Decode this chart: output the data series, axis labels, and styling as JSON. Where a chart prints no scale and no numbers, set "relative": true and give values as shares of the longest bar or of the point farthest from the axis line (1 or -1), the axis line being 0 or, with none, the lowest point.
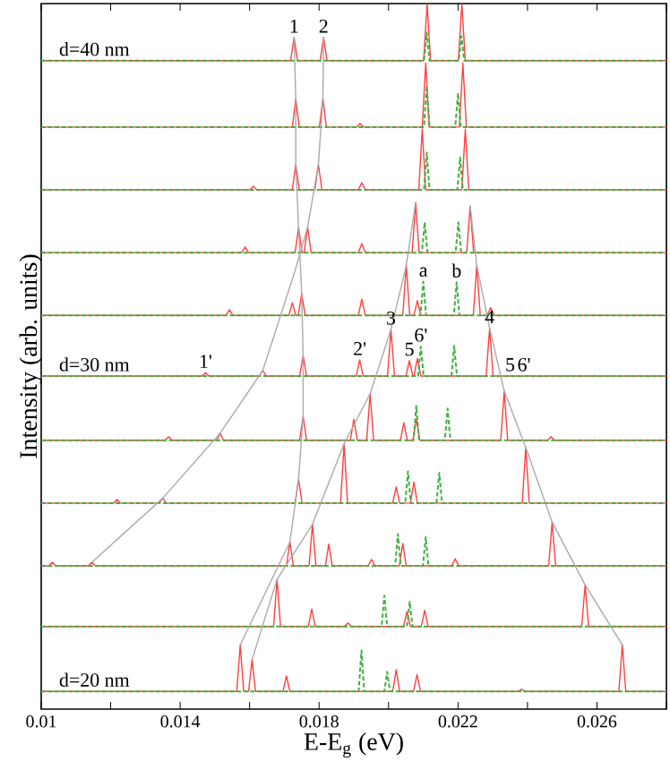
{
  "chart_data": {
    "type": "line",
    "relative": true,
    "xlabel": "E-E$_{g}$ (eV)",
    "ylabel": "Intensity (arb. units)",
    "xlim": [
      0.01,
      0.028
    ],
    "xticks": [
      0.01,
      {
        "value": 0.012,
        "label": null
      },
      0.014,
      {
        "value": 0.016,
        "label": null
      },
      0.018,
      {
        "value": 0.02,
        "label": null
      },
      0.022,
      {
        "value": 0.024,
        "label": null
      },
      0.026,
      {
        "value": 0.028,
        "label": null
      }
    ],
    "series": [
      {
        "color": "#ff4040",
        "x": [
          0.01,
          0.01718,
          0.01728,
          0.01738,
          0.01803,
          0.01813,
          0.01823,
          0.02101,
          0.02111,
          0.02121,
          0.02201,
          0.02211,
          0.02221,
          0.028
        ],
        "values": [
          0.919,
          0.919,
          0.952,
          0.919,
          0.919,
          0.952,
          0.919,
          0.919,
          1,
          0.919,
          0.919,
          1,
          0.919,
          0.919
        ]
      },
      {
        "color": "#ff4040",
        "x": [
          0.01,
          0.01723,
          0.01733,
          0.01743,
          0.01801,
          0.01811,
          0.01821,
          0.01908,
          0.01918,
          0.01928,
          0.02097,
          0.02107,
          0.02117,
          0.02204,
          0.02214,
          0.02224,
          0.028
        ],
        "values": [
          0.825,
          0.825,
          0.865,
          0.825,
          0.825,
          0.865,
          0.825,
          0.825,
          0.83,
          0.825,
          0.825,
          0.916,
          0.825,
          0.825,
          0.916,
          0.825,
          0.825
        ]
      },
      {
        "color": "#ff4040",
        "x": [
          0.01,
          0.01601,
          0.01611,
          0.01621,
          0.01723,
          0.01733,
          0.01743,
          0.01788,
          0.01798,
          0.01808,
          0.01913,
          0.01923,
          0.01933,
          0.02087,
          0.02097,
          0.02107,
          0.02211,
          0.02221,
          0.02231,
          0.028
        ],
        "values": [
          0.736,
          0.736,
          0.741,
          0.736,
          0.736,
          0.772,
          0.736,
          0.736,
          0.772,
          0.736,
          0.736,
          0.746,
          0.736,
          0.736,
          0.822,
          0.736,
          0.736,
          0.822,
          0.736,
          0.736
        ]
      },
      {
        "color": "#ff4040",
        "x": [
          0.01,
          0.01577,
          0.01587,
          0.01597,
          0.01731,
          0.01741,
          0.01751,
          0.01757,
          0.01767,
          0.01777,
          0.01913,
          0.01923,
          0.01933,
          0.02068,
          0.02078,
          0.02088,
          0.02225,
          0.02235,
          0.02245,
          0.028
        ],
        "values": [
          0.647,
          0.647,
          0.655,
          0.647,
          0.647,
          0.683,
          0.647,
          0.647,
          0.683,
          0.647,
          0.647,
          0.66,
          0.647,
          0.647,
          0.718,
          0.647,
          0.647,
          0.713,
          0.647,
          0.647
        ]
      },
      {
        "color": "#ff4040",
        "x": [
          0.01,
          0.01532,
          0.01542,
          0.01552,
          0.01713,
          0.01723,
          0.01733,
          0.0174,
          0.0175,
          0.0176,
          0.01913,
          0.01923,
          0.01933,
          0.02041,
          0.02051,
          0.02061,
          0.02073,
          0.02083,
          0.02093,
          0.02244,
          0.02254,
          0.02264,
          0.02284,
          0.02294,
          0.02304,
          0.028
        ],
        "values": [
          0.558,
          0.558,
          0.566,
          0.558,
          0.558,
          0.576,
          0.558,
          0.558,
          0.589,
          0.558,
          0.558,
          0.581,
          0.558,
          0.558,
          0.629,
          0.558,
          0.558,
          0.579,
          0.558,
          0.558,
          0.629,
          0.558,
          0.558,
          0.569,
          0.558,
          0.558
        ]
      },
      {
        "color": "#ff4040",
        "x": [
          0.01,
          0.01463,
          0.01473,
          0.01483,
          0.01628,
          0.01638,
          0.01648,
          0.01744,
          0.01754,
          0.01764,
          0.01907,
          0.01917,
          0.01927,
          0.01997,
          0.02007,
          0.02017,
          0.0205,
          0.0206,
          0.0207,
          0.02073,
          0.02083,
          0.02093,
          0.02281,
          0.02291,
          0.02301,
          0.028
        ],
        "values": [
          0.472,
          0.472,
          0.477,
          0.472,
          0.472,
          0.48,
          0.472,
          0.472,
          0.501,
          0.472,
          0.472,
          0.495,
          0.472,
          0.472,
          0.538,
          0.472,
          0.472,
          0.494,
          0.472,
          0.472,
          0.497,
          0.472,
          0.472,
          0.54,
          0.472,
          0.472
        ]
      },
      {
        "color": "#ff4040",
        "x": [
          0.01,
          0.01357,
          0.01367,
          0.01377,
          0.01505,
          0.01515,
          0.01525,
          0.01744,
          0.01754,
          0.01764,
          0.0189,
          0.019,
          0.0191,
          0.01937,
          0.01947,
          0.01957,
          0.02034,
          0.02044,
          0.02054,
          0.0207,
          0.0208,
          0.0209,
          0.02323,
          0.02333,
          0.02343,
          0.02458,
          0.02468,
          0.02478,
          0.028
        ],
        "values": [
          0.381,
          0.381,
          0.386,
          0.381,
          0.381,
          0.391,
          0.381,
          0.381,
          0.415,
          0.381,
          0.381,
          0.411,
          0.381,
          0.381,
          0.447,
          0.381,
          0.381,
          0.406,
          0.381,
          0.381,
          0.411,
          0.381,
          0.381,
          0.451,
          0.381,
          0.381,
          0.386,
          0.381,
          0.381
        ]
      },
      {
        "color": "#ff4040",
        "x": [
          0.01,
          0.01208,
          0.01218,
          0.01228,
          0.0134,
          0.0135,
          0.0136,
          0.01731,
          0.01741,
          0.01751,
          0.01862,
          0.01872,
          0.01882,
          0.02012,
          0.02022,
          0.02032,
          0.02063,
          0.02073,
          0.02083,
          0.02385,
          0.02395,
          0.02405,
          0.028
        ],
        "values": [
          0.292,
          0.292,
          0.297,
          0.292,
          0.292,
          0.299,
          0.292,
          0.292,
          0.326,
          0.292,
          0.292,
          0.376,
          0.292,
          0.292,
          0.315,
          0.292,
          0.292,
          0.322,
          0.292,
          0.292,
          0.371,
          0.292,
          0.292
        ]
      },
      {
        "color": "#ff4040",
        "x": [
          0.01,
          0.01022,
          0.01032,
          0.01042,
          0.01136,
          0.01146,
          0.01156,
          0.01706,
          0.01716,
          0.01726,
          0.01771,
          0.01781,
          0.01791,
          0.01818,
          0.01828,
          0.01838,
          0.01941,
          0.01951,
          0.01961,
          0.02031,
          0.02041,
          0.02051,
          0.02182,
          0.02192,
          0.02202,
          0.02461,
          0.02471,
          0.02481,
          0.028
        ],
        "values": [
          0.203,
          0.203,
          0.208,
          0.203,
          0.203,
          0.208,
          0.203,
          0.203,
          0.237,
          0.203,
          0.203,
          0.262,
          0.203,
          0.203,
          0.234,
          0.203,
          0.203,
          0.212,
          0.203,
          0.203,
          0.235,
          0.203,
          0.203,
          0.213,
          0.203,
          0.203,
          0.265,
          0.203,
          0.203
        ]
      },
      {
        "color": "#ff4040",
        "x": [
          0.01,
          0.01669,
          0.01679,
          0.01689,
          0.01769,
          0.01779,
          0.01789,
          0.01873,
          0.01883,
          0.01893,
          0.02043,
          0.02053,
          0.02063,
          0.02094,
          0.02104,
          0.02114,
          0.02556,
          0.02566,
          0.02576,
          0.028
        ],
        "values": [
          0.117,
          0.117,
          0.184,
          0.117,
          0.117,
          0.142,
          0.117,
          0.117,
          0.122,
          0.117,
          0.117,
          0.138,
          0.117,
          0.117,
          0.14,
          0.117,
          0.117,
          0.176,
          0.117,
          0.117
        ]
      },
      {
        "color": "#ff4040",
        "x": [
          0.01,
          0.01563,
          0.01573,
          0.01583,
          0.01597,
          0.01607,
          0.01617,
          0.01696,
          0.01706,
          0.01716,
          0.02012,
          0.02022,
          0.02032,
          0.02072,
          0.02082,
          0.02092,
          0.02373,
          0.02383,
          0.02393,
          0.02663,
          0.02673,
          0.02683,
          0.028
        ],
        "values": [
          0.025,
          0.025,
          0.091,
          0.025,
          0.025,
          0.07,
          0.025,
          0.025,
          0.047,
          0.025,
          0.025,
          0.056,
          0.025,
          0.025,
          0.049,
          0.025,
          0.025,
          0.028,
          0.025,
          0.025,
          0.091,
          0.025,
          0.025
        ]
      },
      {
        "color": "#40b040",
        "line_style": "dashed",
        "x": [
          0.01,
          0.02102,
          0.0211,
          0.02118,
          0.02202,
          0.0221,
          0.02218,
          0.0279
        ],
        "values": [
          0.919,
          0.919,
          0.959,
          0.919,
          0.919,
          0.954,
          0.919,
          0.919
        ]
      },
      {
        "color": "#40b040",
        "line_style": "dashed",
        "x": [
          0.01,
          0.02102,
          0.0211,
          0.02118,
          0.02192,
          0.022,
          0.02208,
          0.0279
        ],
        "values": [
          0.825,
          0.825,
          0.883,
          0.825,
          0.825,
          0.873,
          0.825,
          0.825
        ]
      },
      {
        "color": "#40b040",
        "line_style": "dashed",
        "x": [
          0.01,
          0.02102,
          0.0211,
          0.02118,
          0.02198,
          0.02206,
          0.02214,
          0.0279
        ],
        "values": [
          0.736,
          0.736,
          0.789,
          0.736,
          0.736,
          0.782,
          0.736,
          0.736
        ]
      },
      {
        "color": "#40b040",
        "line_style": "dashed",
        "x": [
          0.01,
          0.02096,
          0.02104,
          0.02112,
          0.02193,
          0.02201,
          0.02209,
          0.0279
        ],
        "values": [
          0.647,
          0.647,
          0.69,
          0.647,
          0.647,
          0.69,
          0.647,
          0.647
        ]
      },
      {
        "color": "#40b040",
        "line_style": "dashed",
        "x": [
          0.01,
          0.02092,
          0.021,
          0.02108,
          0.02188,
          0.02196,
          0.02204,
          0.0279
        ],
        "values": [
          0.558,
          0.558,
          0.606,
          0.558,
          0.558,
          0.605,
          0.558,
          0.558
        ]
      },
      {
        "color": "#40b040",
        "line_style": "dashed",
        "x": [
          0.01,
          0.02085,
          0.02093,
          0.02101,
          0.02181,
          0.02189,
          0.02197,
          0.0279
        ],
        "values": [
          0.472,
          0.472,
          0.514,
          0.472,
          0.472,
          0.515,
          0.472,
          0.472
        ]
      },
      {
        "color": "#40b040",
        "line_style": "dashed",
        "x": [
          0.01,
          0.02072,
          0.0208,
          0.02088,
          0.02162,
          0.0217,
          0.02178,
          0.0279
        ],
        "values": [
          0.381,
          0.381,
          0.43,
          0.381,
          0.381,
          0.426,
          0.381,
          0.381
        ]
      },
      {
        "color": "#40b040",
        "line_style": "dashed",
        "x": [
          0.01,
          0.02048,
          0.02056,
          0.02064,
          0.02138,
          0.02146,
          0.02154,
          0.0279
        ],
        "values": [
          0.292,
          0.292,
          0.337,
          0.292,
          0.292,
          0.335,
          0.292,
          0.292
        ]
      },
      {
        "color": "#40b040",
        "line_style": "dashed",
        "x": [
          0.01,
          0.02019,
          0.02027,
          0.02035,
          0.02099,
          0.02107,
          0.02115,
          0.0279
        ],
        "values": [
          0.203,
          0.203,
          0.248,
          0.203,
          0.203,
          0.244,
          0.203,
          0.203
        ]
      },
      {
        "color": "#40b040",
        "line_style": "dashed",
        "x": [
          0.01,
          0.0198,
          0.01988,
          0.01996,
          0.02053,
          0.02061,
          0.02069,
          0.0279
        ],
        "values": [
          0.117,
          0.117,
          0.161,
          0.117,
          0.117,
          0.152,
          0.117,
          0.117
        ]
      },
      {
        "color": "#40b040",
        "line_style": "dashed",
        "x": [
          0.01,
          0.01914,
          0.01922,
          0.0193,
          0.01988,
          0.01996,
          0.02004,
          0.0279
        ],
        "values": [
          0.025,
          0.025,
          0.083,
          0.025,
          0.025,
          0.053,
          0.025,
          0.025
        ]
      },
      {
        "color": "#aaaaaa",
        "x": [
          0.01728,
          0.01733,
          0.01733,
          0.01741,
          0.0175,
          0.01754,
          0.01754,
          0.01741,
          0.01716,
          0.01573
        ],
        "values": [
          0.952,
          0.865,
          0.772,
          0.683,
          0.589,
          0.501,
          0.415,
          0.326,
          0.237,
          0.091
        ]
      },
      {
        "color": "#aaaaaa",
        "x": [
          0.01813,
          0.01811,
          0.01798,
          0.01767,
          0.0173,
          0.01638,
          0.01515,
          0.0135,
          0.01146
        ],
        "values": [
          0.952,
          0.865,
          0.772,
          0.683,
          0.62,
          0.48,
          0.391,
          0.299,
          0.208
        ]
      },
      {
        "color": "#aaaaaa",
        "x": [
          0.02078,
          0.02051,
          0.02007,
          0.01947,
          0.01872,
          0.01781,
          0.01679,
          0.01607
        ],
        "values": [
          0.718,
          0.629,
          0.538,
          0.447,
          0.376,
          0.262,
          0.184,
          0.07
        ]
      },
      {
        "color": "#aaaaaa",
        "x": [
          0.02235,
          0.02254,
          0.02291,
          0.02333,
          0.02395,
          0.02471,
          0.02566,
          0.02673
        ],
        "values": [
          0.713,
          0.629,
          0.54,
          0.451,
          0.371,
          0.265,
          0.176,
          0.091
        ]
      }
    ],
    "annotations": [
      {
        "text": "d=40 nm",
        "x": 0.01153,
        "y": 0.919
      },
      {
        "text": "d=30 nm",
        "x": 0.01153,
        "y": 0.472
      },
      {
        "text": "d=20 nm",
        "x": 0.01153,
        "y": 0.025
      },
      {
        "text": "1",
        "x": 0.01728,
        "y": 0.952
      },
      {
        "text": "2",
        "x": 0.01813,
        "y": 0.952
      },
      {
        "text": "a",
        "x": 0.021,
        "y": 0.606
      },
      {
        "text": "b",
        "x": 0.02196,
        "y": 0.605
      },
      {
        "text": "1'",
        "x": 0.01473,
        "y": 0.477
      },
      {
        "text": "2'",
        "x": 0.01917,
        "y": 0.495
      },
      {
        "text": "3",
        "x": 0.02007,
        "y": 0.538
      },
      {
        "text": "5",
        "x": 0.0206,
        "y": 0.494
      },
      {
        "text": "6'",
        "x": 0.02093,
        "y": 0.514
      },
      {
        "text": "4",
        "x": 0.02291,
        "y": 0.54
      },
      {
        "text": "5",
        "x": 0.0235,
        "y": 0.472
      },
      {
        "text": "6'",
        "x": 0.0239,
        "y": 0.472
      }
    ]
  }
}
